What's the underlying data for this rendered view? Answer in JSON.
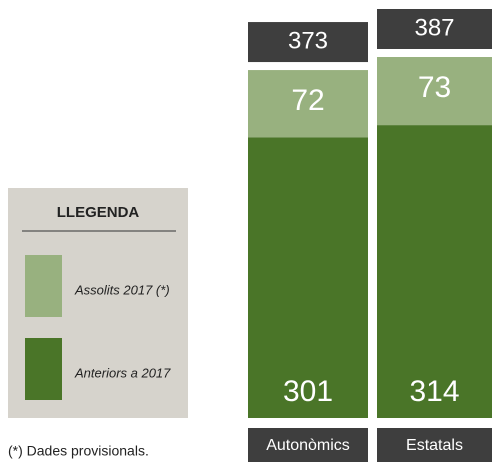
{
  "chart_data": {
    "type": "stacked-bar",
    "categories": [
      "Autonòmics",
      "Estatals"
    ],
    "series": [
      {
        "name": "Anteriors a 2017",
        "color": "#4a7528",
        "values": [
          301,
          314
        ]
      },
      {
        "name": "Assolits 2017 (*)",
        "color": "#98b17f",
        "values": [
          72,
          73
        ]
      }
    ],
    "totals": [
      373,
      387
    ],
    "legend_title": "LLEGENDA",
    "footnote": "(*) Dades provisionals."
  }
}
